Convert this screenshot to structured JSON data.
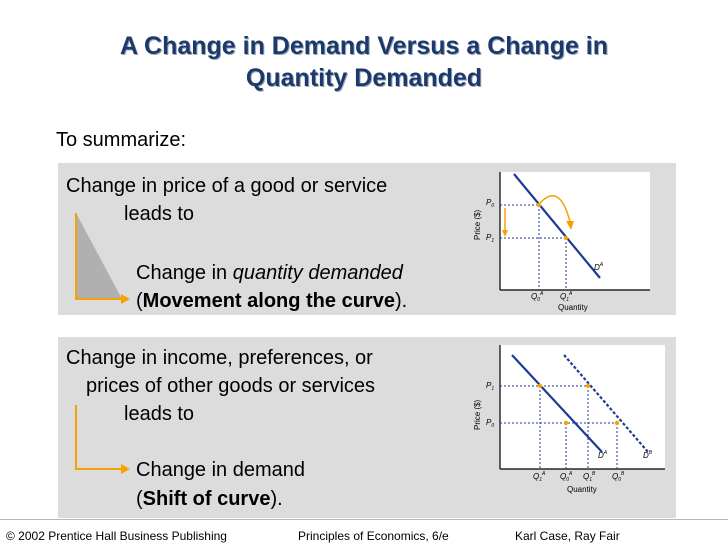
{
  "slide": {
    "title_line1": "A Change in Demand Versus a Change in",
    "title_line2": "Quantity Demanded",
    "summary_label": "To summarize:"
  },
  "panel1": {
    "line1": "Change in price of a good or service",
    "line2": "leads to",
    "result_prefix": "Change in ",
    "result_emph": "quantity demanded",
    "paren_open": "(",
    "paren_bold": "Movement along the curve",
    "paren_close": ")."
  },
  "panel2": {
    "line1": "Change in income, preferences, or",
    "line2": "prices of other goods or services",
    "line3": "leads to",
    "result": "Change in demand",
    "paren_open": "(",
    "paren_bold": "Shift of curve",
    "paren_close": ")."
  },
  "graph1": {
    "y_label": "Price ($)",
    "x_label": "Quantity",
    "p_label": "P",
    "q_label": "Q",
    "d_label": "D",
    "sub0": "0",
    "sub1": "1",
    "sup_a": "A"
  },
  "graph2": {
    "y_label": "Price ($)",
    "x_label": "Quantity",
    "p_label": "P",
    "q_label": "Q",
    "d_label": "D",
    "sub0": "0",
    "sub1": "1",
    "sup_a": "A",
    "sup_b": "B"
  },
  "footer": {
    "publisher": "© 2002 Prentice Hall Business Publishing",
    "book": "Principles of Economics, 6/e",
    "authors": "Karl Case, Ray Fair"
  },
  "colors": {
    "title": "#1b3a6b",
    "curve": "#1f3a93",
    "arrow": "#f5a300",
    "panel": "#dcdcdc"
  }
}
